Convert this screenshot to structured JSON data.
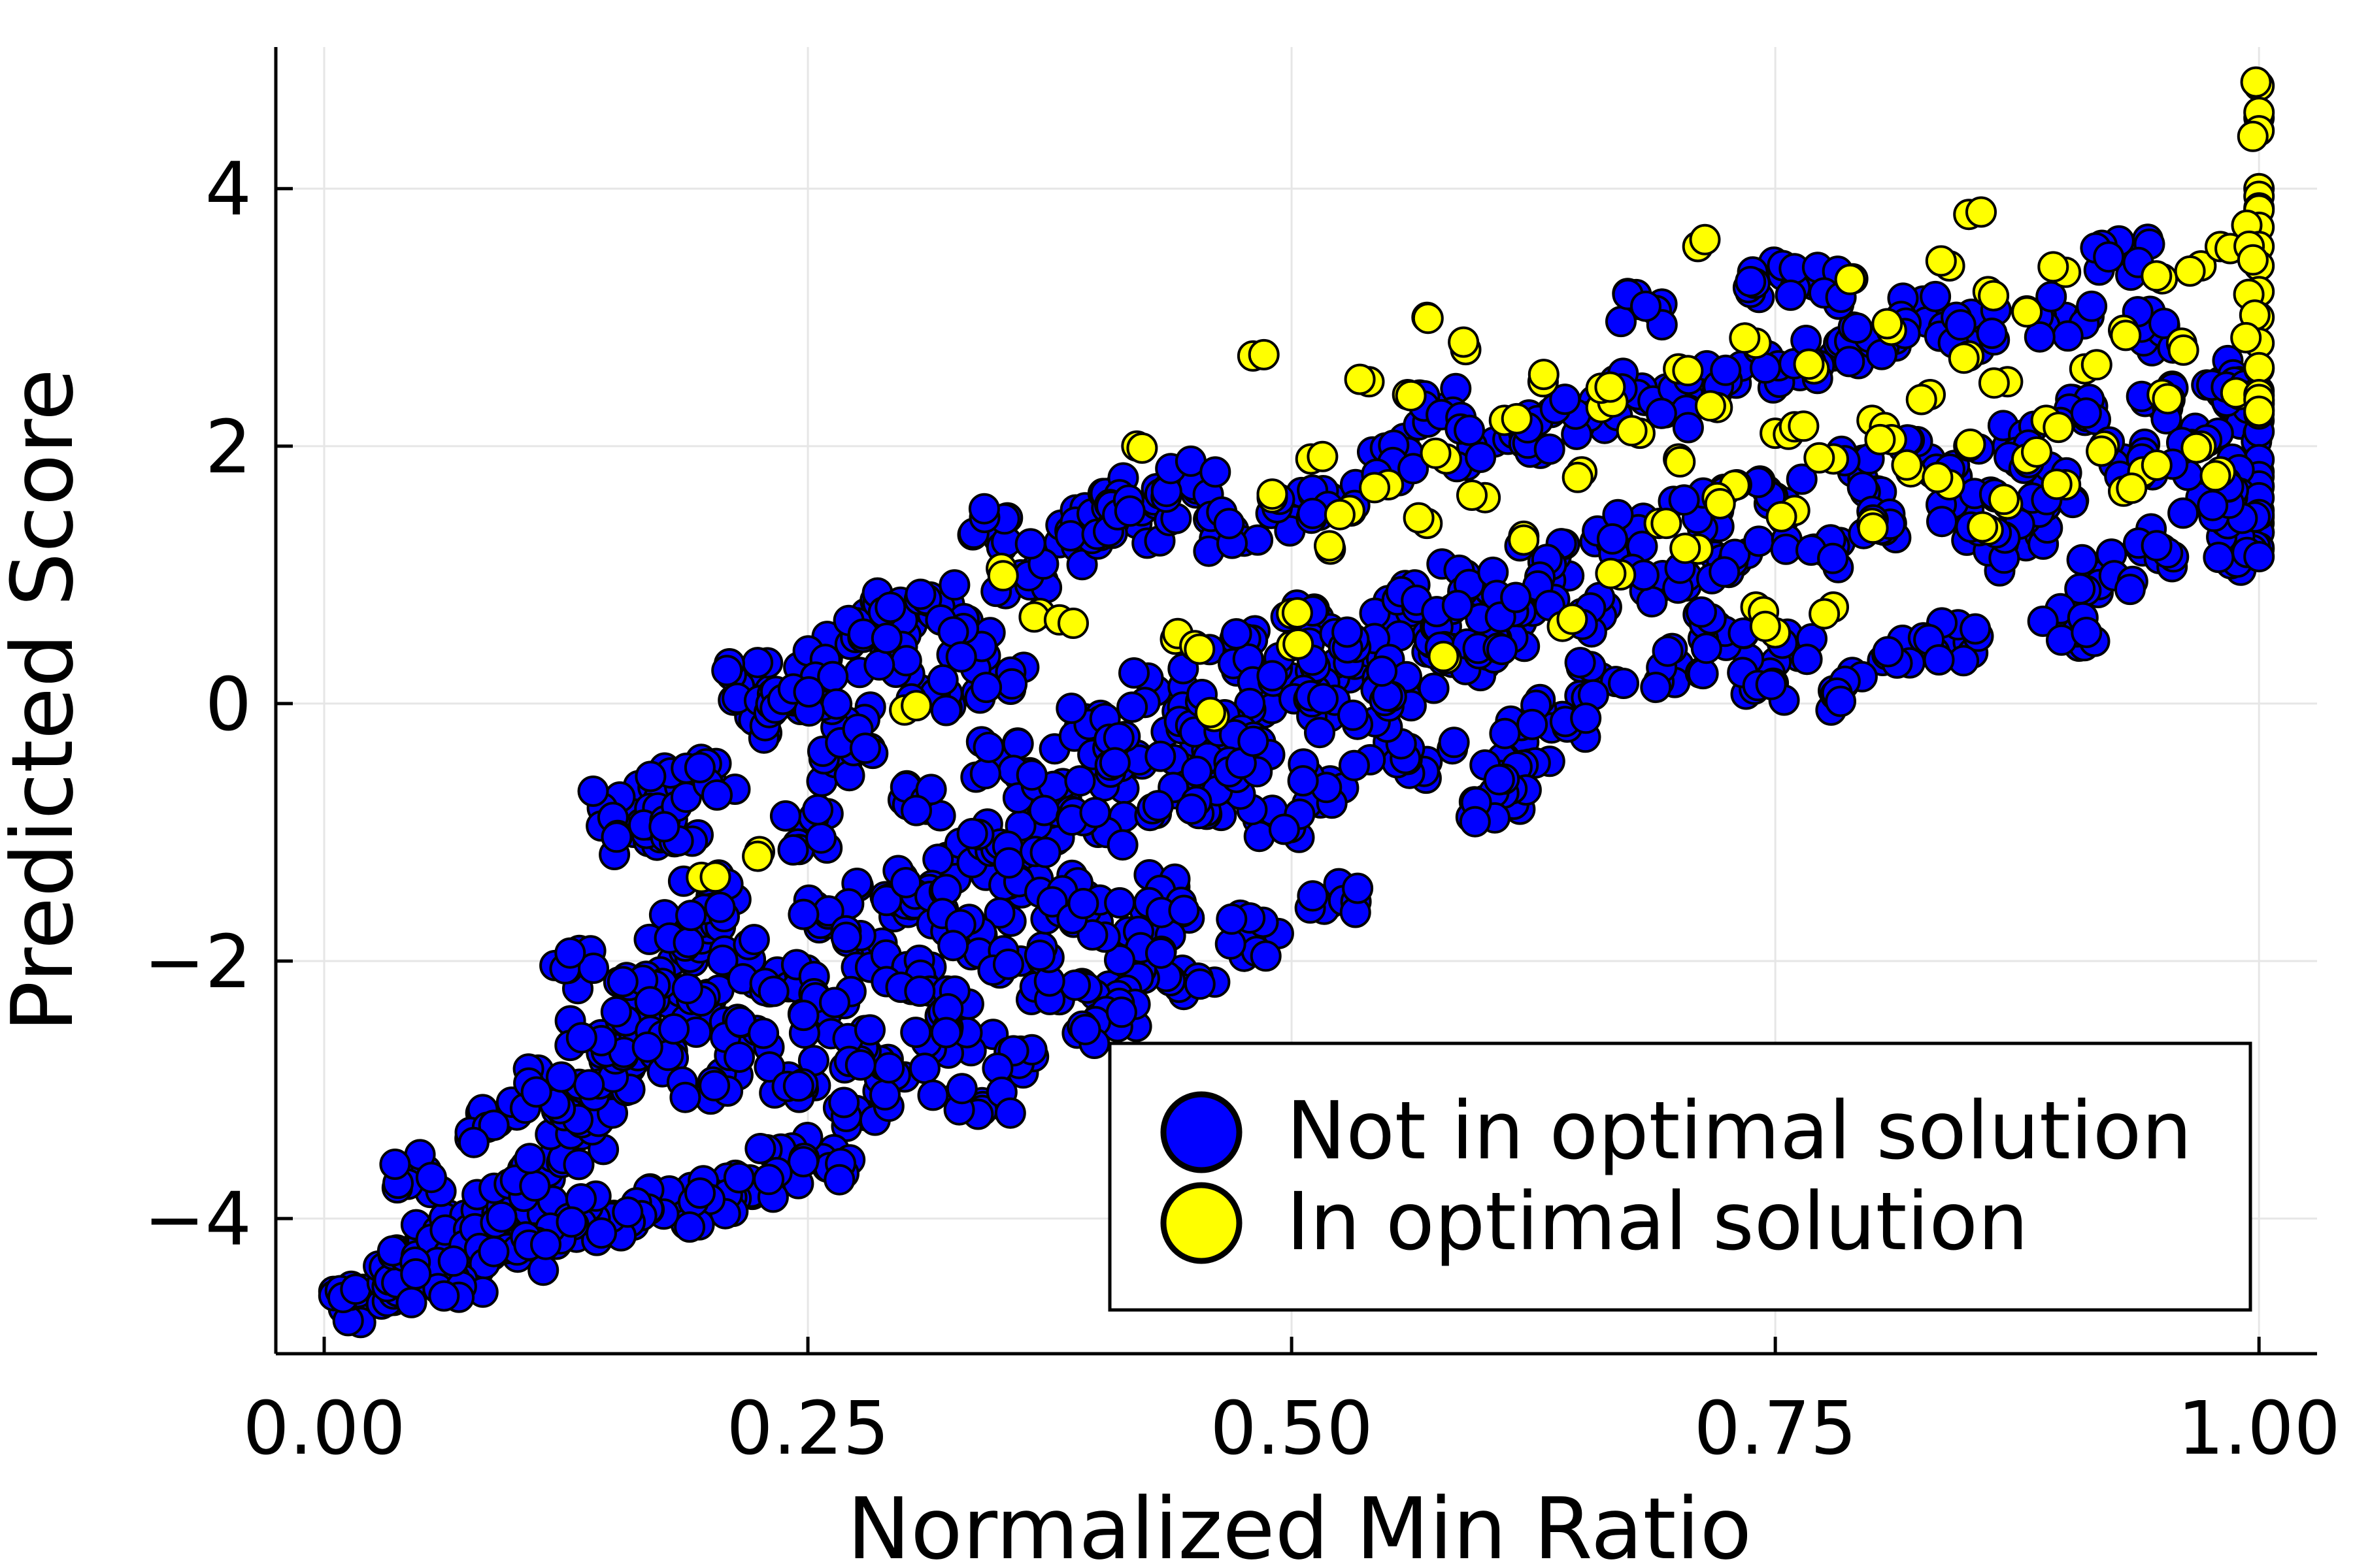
{
  "chart_data": {
    "type": "scatter",
    "title": "",
    "xlabel": "Normalized Min Ratio",
    "ylabel": "Predicted Score",
    "xlim": [
      -0.025,
      1.03
    ],
    "ylim": [
      -5.05,
      5.1
    ],
    "xticks": [
      0.0,
      0.25,
      0.5,
      0.75,
      1.0
    ],
    "xtick_labels": [
      "0.00",
      "0.25",
      "0.50",
      "0.75",
      "1.00"
    ],
    "yticks": [
      -4,
      -2,
      0,
      2,
      4
    ],
    "ytick_labels": [
      "−4",
      "−2",
      "0",
      "2",
      "4"
    ],
    "grid": true,
    "legend_position": "bottom-right",
    "series": [
      {
        "name": "Not in optimal solution",
        "color": "#0000ff",
        "points": [
          [
            0.01,
            -4.7
          ],
          [
            0.02,
            -4.55
          ],
          [
            0.03,
            -4.5
          ],
          [
            0.04,
            -4.4
          ],
          [
            0.05,
            -4.3
          ],
          [
            0.06,
            -4.2
          ],
          [
            0.07,
            -4.1
          ],
          [
            0.08,
            -4.15
          ],
          [
            0.09,
            -3.95
          ],
          [
            0.1,
            -3.9
          ],
          [
            0.11,
            -3.7
          ],
          [
            0.12,
            -3.5
          ],
          [
            0.13,
            -3.3
          ],
          [
            0.14,
            -3.1
          ],
          [
            0.15,
            -2.9
          ],
          [
            0.16,
            -2.6
          ],
          [
            0.17,
            -2.3
          ],
          [
            0.18,
            -2.0
          ],
          [
            0.19,
            -1.7
          ],
          [
            0.2,
            -1.5
          ],
          [
            0.05,
            -3.65
          ],
          [
            0.09,
            -3.25
          ],
          [
            0.11,
            -3.0
          ],
          [
            0.13,
            -2.05
          ],
          [
            0.15,
            -0.8
          ],
          [
            0.16,
            -1.0
          ],
          [
            0.17,
            -0.65
          ],
          [
            0.18,
            -0.9
          ],
          [
            0.2,
            -0.6
          ],
          [
            0.22,
            0.2
          ],
          [
            0.22,
            -0.1
          ],
          [
            0.24,
            0.05
          ],
          [
            0.26,
            0.35
          ],
          [
            0.28,
            0.7
          ],
          [
            0.3,
            0.65
          ],
          [
            0.32,
            0.8
          ],
          [
            0.34,
            1.35
          ],
          [
            0.36,
            1.0
          ],
          [
            0.38,
            1.25
          ],
          [
            0.4,
            1.4
          ],
          [
            0.41,
            1.6
          ],
          [
            0.42,
            1.4
          ],
          [
            0.43,
            1.55
          ],
          [
            0.45,
            1.8
          ],
          [
            0.47,
            1.35
          ],
          [
            0.5,
            1.5
          ],
          [
            0.52,
            1.6
          ],
          [
            0.55,
            1.9
          ],
          [
            0.58,
            2.3
          ],
          [
            0.6,
            2.0
          ],
          [
            0.62,
            2.1
          ],
          [
            0.65,
            2.2
          ],
          [
            0.68,
            2.4
          ],
          [
            0.7,
            2.3
          ],
          [
            0.72,
            2.5
          ],
          [
            0.75,
            2.6
          ],
          [
            0.78,
            2.7
          ],
          [
            0.8,
            2.8
          ],
          [
            0.83,
            3.0
          ],
          [
            0.85,
            2.9
          ],
          [
            0.68,
            3.1
          ],
          [
            0.74,
            3.3
          ],
          [
            0.77,
            3.25
          ],
          [
            0.9,
            3.0
          ],
          [
            0.93,
            3.5
          ],
          [
            0.95,
            2.9
          ],
          [
            0.98,
            2.5
          ],
          [
            1.0,
            2.2
          ],
          [
            1.0,
            1.8
          ],
          [
            1.0,
            1.5
          ],
          [
            1.0,
            1.2
          ],
          [
            0.99,
            1.3
          ],
          [
            0.97,
            1.6
          ],
          [
            0.95,
            1.2
          ],
          [
            0.92,
            1.0
          ],
          [
            0.9,
            0.6
          ],
          [
            0.88,
            1.4
          ],
          [
            0.86,
            1.2
          ],
          [
            0.84,
            0.5
          ],
          [
            0.82,
            0.4
          ],
          [
            0.78,
            0.1
          ],
          [
            0.76,
            0.4
          ],
          [
            0.74,
            0.2
          ],
          [
            0.72,
            0.6
          ],
          [
            0.7,
            0.3
          ],
          [
            0.66,
            0.2
          ],
          [
            0.64,
            -0.1
          ],
          [
            0.62,
            -0.3
          ],
          [
            0.61,
            -0.65
          ],
          [
            0.6,
            -0.75
          ],
          [
            0.57,
            -0.45
          ],
          [
            0.55,
            -0.3
          ],
          [
            0.52,
            -0.6
          ],
          [
            0.52,
            -1.55
          ],
          [
            0.49,
            -0.9
          ],
          [
            0.48,
            -1.8
          ],
          [
            0.46,
            -0.7
          ],
          [
            0.44,
            -1.5
          ],
          [
            0.45,
            -2.15
          ],
          [
            0.43,
            -1.7
          ],
          [
            0.42,
            -2.05
          ],
          [
            0.41,
            -2.35
          ],
          [
            0.4,
            -2.5
          ],
          [
            0.38,
            -2.3
          ],
          [
            0.36,
            -2.7
          ],
          [
            0.34,
            -3.1
          ],
          [
            0.32,
            -2.6
          ],
          [
            0.3,
            -2.9
          ],
          [
            0.28,
            -3.2
          ],
          [
            0.26,
            -3.6
          ],
          [
            0.24,
            -3.5
          ],
          [
            0.22,
            -3.7
          ],
          [
            0.2,
            -3.8
          ],
          [
            0.18,
            -3.9
          ],
          [
            0.16,
            -4.05
          ],
          [
            0.14,
            -4.0
          ],
          [
            0.12,
            -4.2
          ],
          [
            0.1,
            -4.3
          ],
          [
            0.08,
            -4.4
          ],
          [
            0.06,
            -4.5
          ],
          [
            0.25,
            -1.0
          ],
          [
            0.27,
            -0.5
          ],
          [
            0.29,
            -1.5
          ],
          [
            0.31,
            -0.8
          ],
          [
            0.33,
            -1.2
          ],
          [
            0.35,
            -0.4
          ],
          [
            0.37,
            -0.9
          ],
          [
            0.39,
            -0.2
          ],
          [
            0.41,
            -0.5
          ],
          [
            0.43,
            0.1
          ],
          [
            0.45,
            -0.3
          ],
          [
            0.47,
            0.4
          ],
          [
            0.49,
            0.0
          ],
          [
            0.51,
            0.6
          ],
          [
            0.53,
            0.2
          ],
          [
            0.55,
            0.8
          ],
          [
            0.57,
            0.4
          ],
          [
            0.59,
            1.0
          ],
          [
            0.61,
            0.6
          ],
          [
            0.63,
            1.1
          ],
          [
            0.65,
            0.7
          ],
          [
            0.67,
            1.3
          ],
          [
            0.69,
            0.9
          ],
          [
            0.71,
            1.5
          ],
          [
            0.73,
            1.1
          ],
          [
            0.75,
            1.6
          ],
          [
            0.77,
            1.2
          ],
          [
            0.79,
            1.8
          ],
          [
            0.81,
            1.4
          ],
          [
            0.83,
            1.9
          ],
          [
            0.85,
            1.5
          ],
          [
            0.87,
            2.0
          ],
          [
            0.89,
            1.7
          ],
          [
            0.91,
            2.2
          ],
          [
            0.93,
            1.9
          ],
          [
            0.95,
            2.3
          ],
          [
            0.97,
            2.0
          ],
          [
            0.99,
            2.5
          ],
          [
            0.2,
            -2.3
          ],
          [
            0.22,
            -2.0
          ],
          [
            0.24,
            -2.2
          ],
          [
            0.26,
            -1.7
          ],
          [
            0.28,
            -1.9
          ],
          [
            0.3,
            -1.4
          ],
          [
            0.32,
            -1.6
          ],
          [
            0.34,
            -1.1
          ],
          [
            0.36,
            -1.3
          ],
          [
            0.38,
            -0.7
          ],
          [
            0.4,
            -1.0
          ],
          [
            0.42,
            -0.4
          ],
          [
            0.44,
            -0.7
          ],
          [
            0.46,
            -0.1
          ],
          [
            0.48,
            -0.4
          ],
          [
            0.5,
            0.2
          ],
          [
            0.52,
            -0.1
          ],
          [
            0.54,
            0.4
          ],
          [
            0.56,
            0.1
          ],
          [
            0.58,
            0.6
          ],
          [
            0.6,
            0.3
          ],
          [
            0.62,
            0.8
          ],
          [
            0.14,
            -2.6
          ],
          [
            0.16,
            -2.3
          ],
          [
            0.18,
            -2.7
          ],
          [
            0.2,
            -3.0
          ],
          [
            0.22,
            -2.6
          ],
          [
            0.24,
            -2.9
          ],
          [
            0.26,
            -2.4
          ],
          [
            0.28,
            -2.7
          ],
          [
            0.3,
            -2.1
          ],
          [
            0.32,
            -2.4
          ],
          [
            0.34,
            -1.8
          ],
          [
            0.36,
            -2.0
          ],
          [
            0.38,
            -1.5
          ],
          [
            0.4,
            -1.7
          ],
          [
            0.35,
            0.2
          ],
          [
            0.33,
            0.5
          ],
          [
            0.31,
            0.1
          ],
          [
            0.29,
            0.4
          ],
          [
            0.27,
            -0.2
          ],
          [
            0.25,
            0.1
          ]
        ]
      },
      {
        "name": "In optimal solution",
        "color": "#ffff00",
        "points": [
          [
            0.195,
            -1.35
          ],
          [
            0.225,
            -1.15
          ],
          [
            0.3,
            -0.05
          ],
          [
            0.35,
            1.05
          ],
          [
            0.37,
            0.7
          ],
          [
            0.38,
            0.65
          ],
          [
            0.42,
            2.0
          ],
          [
            0.44,
            0.5
          ],
          [
            0.45,
            0.45
          ],
          [
            0.46,
            -0.1
          ],
          [
            0.48,
            2.7
          ],
          [
            0.49,
            1.6
          ],
          [
            0.5,
            0.7
          ],
          [
            0.5,
            0.45
          ],
          [
            0.51,
            1.9
          ],
          [
            0.52,
            1.2
          ],
          [
            0.53,
            1.5
          ],
          [
            0.54,
            2.5
          ],
          [
            0.55,
            1.7
          ],
          [
            0.56,
            2.4
          ],
          [
            0.57,
            3.0
          ],
          [
            0.57,
            1.4
          ],
          [
            0.58,
            1.9
          ],
          [
            0.58,
            0.35
          ],
          [
            0.59,
            2.75
          ],
          [
            0.6,
            1.6
          ],
          [
            0.61,
            2.2
          ],
          [
            0.62,
            1.3
          ],
          [
            0.63,
            2.5
          ],
          [
            0.64,
            0.6
          ],
          [
            0.65,
            1.8
          ],
          [
            0.66,
            2.3
          ],
          [
            0.67,
            1.0
          ],
          [
            0.68,
            2.1
          ],
          [
            0.69,
            1.4
          ],
          [
            0.7,
            2.6
          ],
          [
            0.7,
            1.9
          ],
          [
            0.71,
            3.55
          ],
          [
            0.71,
            1.2
          ],
          [
            0.72,
            2.3
          ],
          [
            0.73,
            1.7
          ],
          [
            0.74,
            2.8
          ],
          [
            0.74,
            0.75
          ],
          [
            0.75,
            2.1
          ],
          [
            0.75,
            0.55
          ],
          [
            0.76,
            1.5
          ],
          [
            0.77,
            2.6
          ],
          [
            0.78,
            1.9
          ],
          [
            0.78,
            0.75
          ],
          [
            0.79,
            3.3
          ],
          [
            0.8,
            2.2
          ],
          [
            0.8,
            1.4
          ],
          [
            0.81,
            2.9
          ],
          [
            0.82,
            1.8
          ],
          [
            0.83,
            2.4
          ],
          [
            0.84,
            3.4
          ],
          [
            0.84,
            1.7
          ],
          [
            0.85,
            2.7
          ],
          [
            0.85,
            2.0
          ],
          [
            0.86,
            3.2
          ],
          [
            0.86,
            1.35
          ],
          [
            0.87,
            2.5
          ],
          [
            0.88,
            3.05
          ],
          [
            0.88,
            1.9
          ],
          [
            0.89,
            2.2
          ],
          [
            0.9,
            3.35
          ],
          [
            0.9,
            1.7
          ],
          [
            0.91,
            2.6
          ],
          [
            0.92,
            2.0
          ],
          [
            0.93,
            2.9
          ],
          [
            0.94,
            1.8
          ],
          [
            0.95,
            3.3
          ],
          [
            0.95,
            2.4
          ],
          [
            0.96,
            2.8
          ],
          [
            0.97,
            3.4
          ],
          [
            0.97,
            2.0
          ],
          [
            0.98,
            3.55
          ],
          [
            0.98,
            1.8
          ],
          [
            0.99,
            2.4
          ],
          [
            0.85,
            3.8
          ],
          [
            1.0,
            4.8
          ],
          [
            1.0,
            4.55
          ],
          [
            1.0,
            4.45
          ],
          [
            1.0,
            4.0
          ],
          [
            1.0,
            3.85
          ],
          [
            1.0,
            3.7
          ],
          [
            1.0,
            3.55
          ],
          [
            1.0,
            3.4
          ],
          [
            1.0,
            3.2
          ],
          [
            1.0,
            3.0
          ],
          [
            1.0,
            2.8
          ],
          [
            1.0,
            2.6
          ],
          [
            1.0,
            2.4
          ],
          [
            1.0,
            2.25
          ],
          [
            0.66,
            2.45
          ],
          [
            0.72,
            1.6
          ],
          [
            0.76,
            2.15
          ],
          [
            0.81,
            2.05
          ],
          [
            0.87,
            1.55
          ],
          [
            0.93,
            1.65
          ]
        ]
      }
    ]
  }
}
